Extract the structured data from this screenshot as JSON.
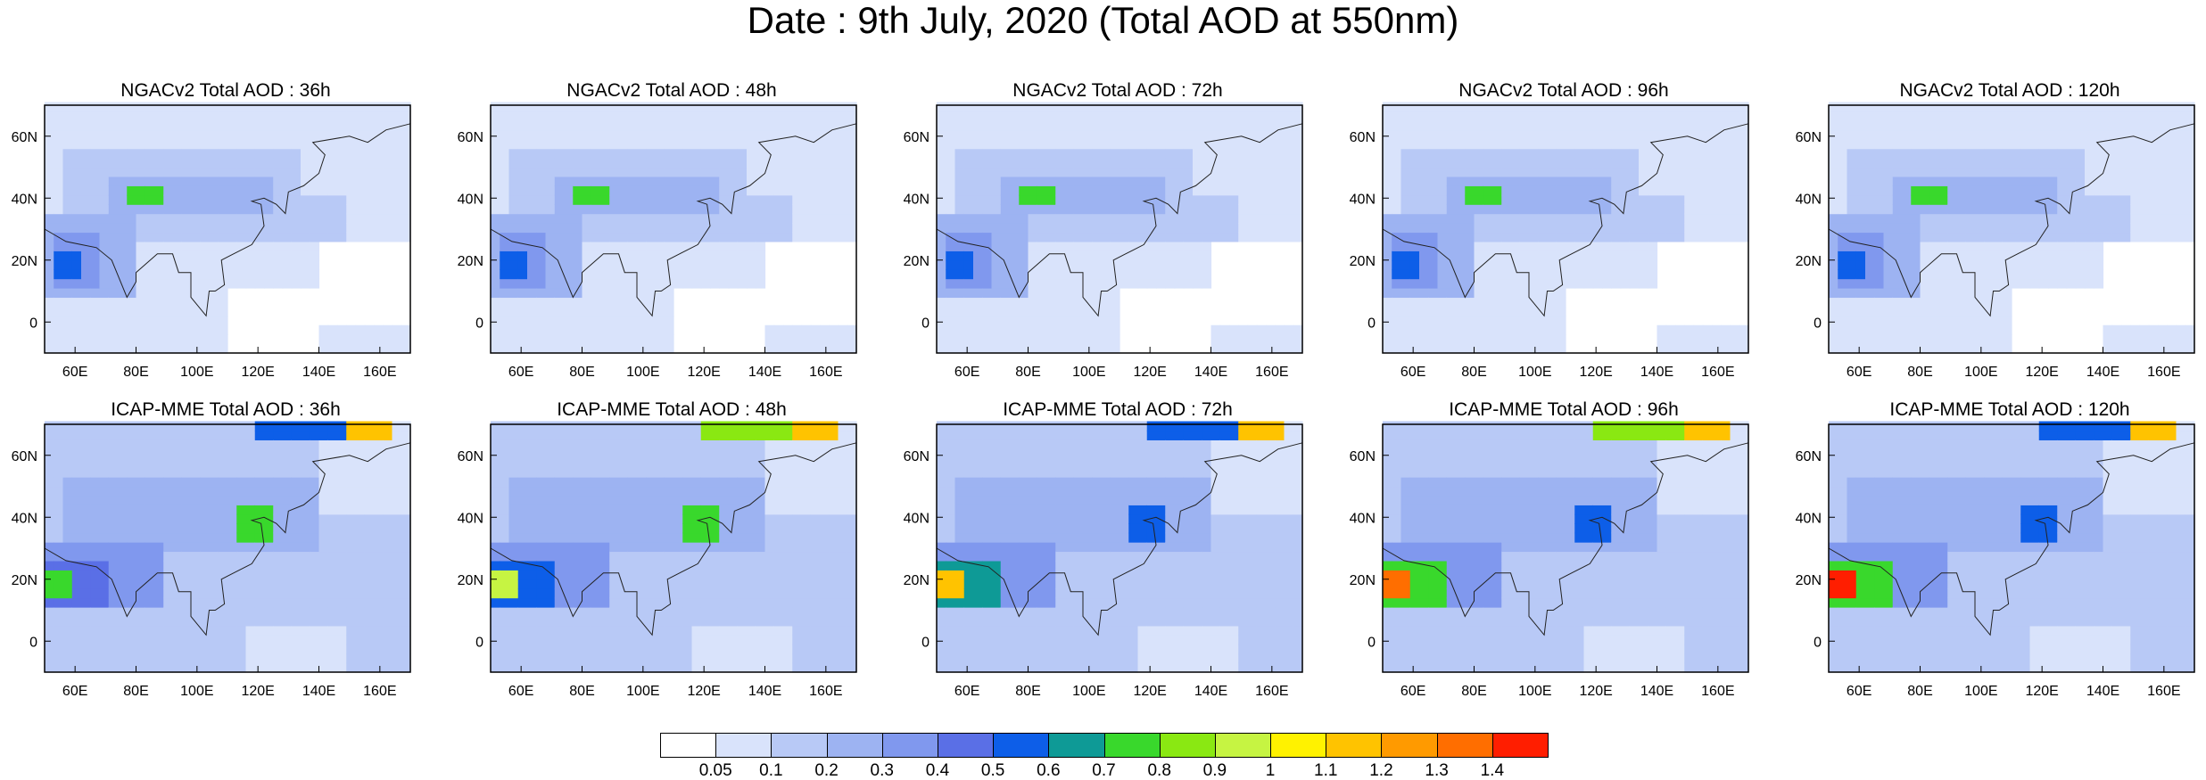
{
  "title": "Date : 9th July, 2020 (Total AOD at 550nm)",
  "axes": {
    "lat_ticks": [
      "60N",
      "40N",
      "20N",
      "0"
    ],
    "lon_ticks": [
      "60E",
      "80E",
      "100E",
      "120E",
      "140E",
      "160E"
    ]
  },
  "rows": [
    {
      "model": "NGACv2",
      "panels": [
        {
          "title": "NGACv2 Total AOD : 36h"
        },
        {
          "title": "NGACv2 Total AOD : 48h"
        },
        {
          "title": "NGACv2 Total AOD : 72h"
        },
        {
          "title": "NGACv2 Total AOD : 96h"
        },
        {
          "title": "NGACv2 Total AOD : 120h"
        }
      ]
    },
    {
      "model": "ICAP-MME",
      "panels": [
        {
          "title": "ICAP-MME Total AOD : 36h"
        },
        {
          "title": "ICAP-MME Total AOD : 48h"
        },
        {
          "title": "ICAP-MME Total AOD : 72h"
        },
        {
          "title": "ICAP-MME Total AOD : 96h"
        },
        {
          "title": "ICAP-MME Total AOD : 120h"
        }
      ]
    }
  ],
  "colorbar": {
    "labels": [
      "0.05",
      "0.1",
      "0.2",
      "0.3",
      "0.4",
      "0.5",
      "0.6",
      "0.7",
      "0.8",
      "0.9",
      "1",
      "1.1",
      "1.2",
      "1.3",
      "1.4"
    ],
    "colors": [
      "#ffffff",
      "#d9e3fb",
      "#b8c9f6",
      "#9db3f2",
      "#8098ee",
      "#5a6fe6",
      "#0d5ee8",
      "#0e9a96",
      "#39d82c",
      "#8ae812",
      "#c6f442",
      "#fff200",
      "#ffc300",
      "#ff9a00",
      "#ff6e00",
      "#ff1e00"
    ]
  }
}
